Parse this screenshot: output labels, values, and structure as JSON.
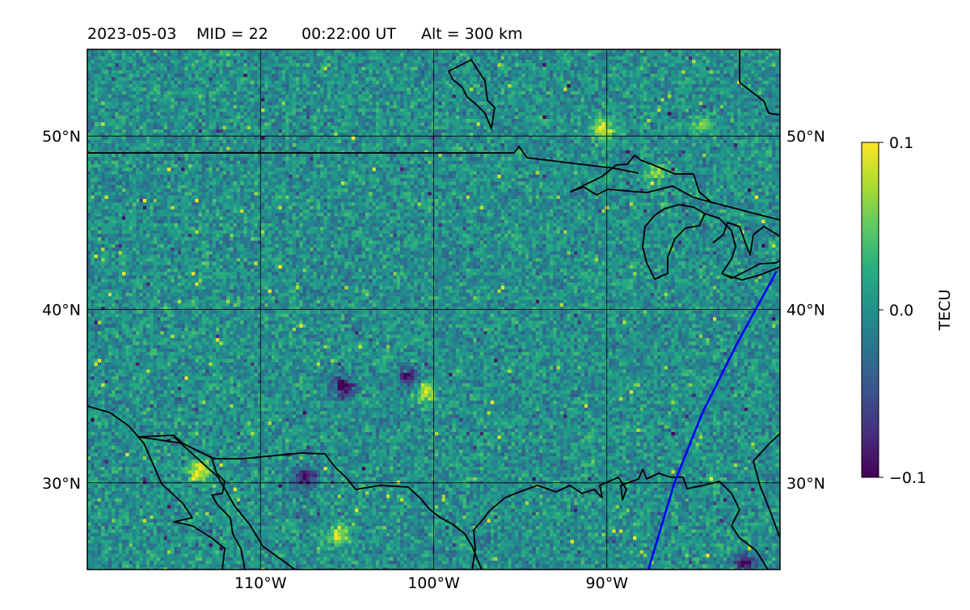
{
  "title": {
    "date": "2023-05-03",
    "mid": "MID =  22",
    "time": "00:22:00  UT",
    "alt": "Alt = 300 km"
  },
  "map": {
    "lon_range": [
      -120,
      -80
    ],
    "lat_range": [
      25,
      55
    ],
    "lon_ticks": [
      {
        "value": -110,
        "label": "110°W"
      },
      {
        "value": -100,
        "label": "100°W"
      },
      {
        "value": -90,
        "label": "90°W"
      }
    ],
    "lat_ticks": [
      {
        "value": 50,
        "label": "50°N"
      },
      {
        "value": 40,
        "label": "40°N"
      },
      {
        "value": 30,
        "label": "30°N"
      }
    ],
    "grid": true,
    "track_color": "#0000ff",
    "coast_color": "#000000"
  },
  "colorbar": {
    "label": "TECU",
    "ticks": [
      {
        "value": 0.1,
        "label": "0.1"
      },
      {
        "value": 0.0,
        "label": "0.0"
      },
      {
        "value": -0.1,
        "label": "−0.1"
      }
    ],
    "colormap": "viridis",
    "vmin": -0.1,
    "vmax": 0.1
  },
  "chart_data": {
    "type": "heatmap",
    "quantity": "TECU",
    "lon_range": [
      -120,
      -80
    ],
    "lat_range": [
      25,
      55
    ],
    "value_range": [
      -0.1,
      0.1
    ],
    "background_mean": 0.0,
    "hotspots": [
      {
        "lon": -90.2,
        "lat": 50.4,
        "value": 0.1
      },
      {
        "lon": -105.5,
        "lat": 27.0,
        "value": 0.09
      },
      {
        "lon": -113.5,
        "lat": 30.7,
        "value": 0.1
      },
      {
        "lon": -100.5,
        "lat": 35.2,
        "value": 0.09
      },
      {
        "lon": -87.2,
        "lat": 47.8,
        "value": 0.06
      },
      {
        "lon": -84.5,
        "lat": 50.5,
        "value": 0.05
      }
    ],
    "coldspots": [
      {
        "lon": -101.5,
        "lat": 36.1,
        "value": -0.1
      },
      {
        "lon": -105.2,
        "lat": 35.5,
        "value": -0.1
      },
      {
        "lon": -107.4,
        "lat": 30.3,
        "value": -0.1
      },
      {
        "lon": -82.0,
        "lat": 25.3,
        "value": -0.1
      }
    ],
    "satellite_track": [
      {
        "lon": -87.6,
        "lat": 25.0
      },
      {
        "lon": -86.1,
        "lat": 30.0
      },
      {
        "lon": -84.5,
        "lat": 34.0
      },
      {
        "lon": -82.5,
        "lat": 38.0
      },
      {
        "lon": -80.2,
        "lat": 42.2
      }
    ]
  }
}
